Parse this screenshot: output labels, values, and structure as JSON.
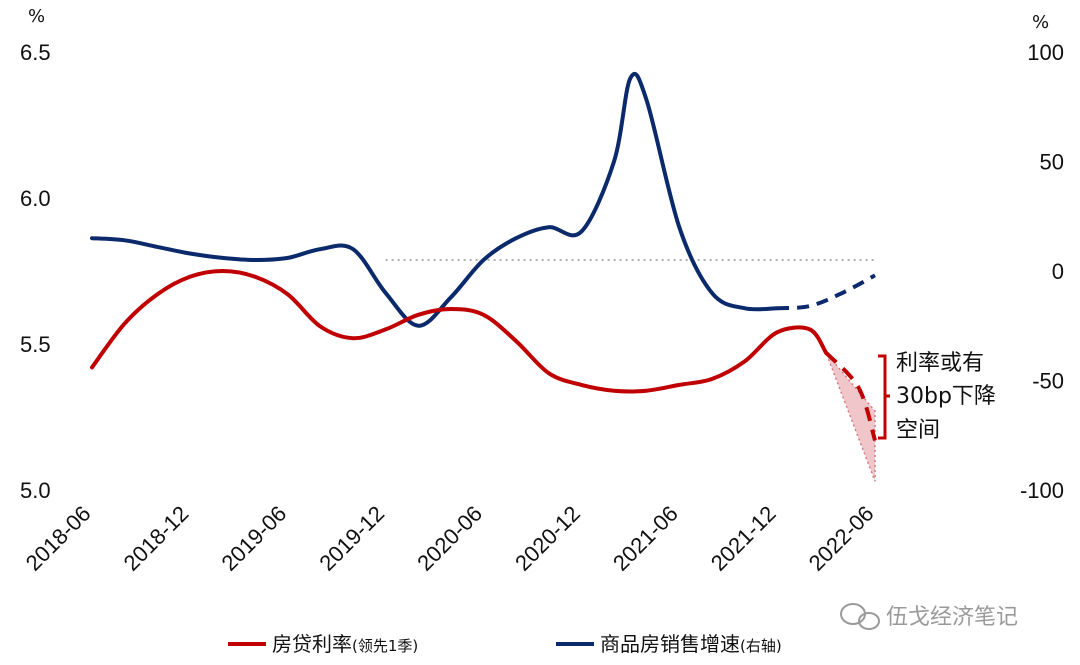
{
  "chart_data": {
    "type": "line",
    "left_axis": {
      "unit": "%",
      "ylim": [
        5.0,
        6.5
      ],
      "ticks": [
        "5.0",
        "5.5",
        "6.0",
        "6.5"
      ]
    },
    "right_axis": {
      "unit": "%",
      "ylim": [
        -100,
        100
      ],
      "ticks": [
        "-100",
        "-50",
        "0",
        "50",
        "100"
      ]
    },
    "x_ticks": [
      "2018-06",
      "2018-12",
      "2019-06",
      "2019-12",
      "2020-06",
      "2020-12",
      "2021-06",
      "2021-12",
      "2022-06"
    ],
    "series": [
      {
        "name": "房贷利率",
        "name_suffix": "(领先1季)",
        "axis": "left",
        "color": "#c00000",
        "points": [
          [
            "2018-06",
            5.42
          ],
          [
            "2018-08",
            5.57
          ],
          [
            "2018-10",
            5.67
          ],
          [
            "2018-12",
            5.73
          ],
          [
            "2019-02",
            5.75
          ],
          [
            "2019-04",
            5.73
          ],
          [
            "2019-06",
            5.67
          ],
          [
            "2019-08",
            5.56
          ],
          [
            "2019-10",
            5.52
          ],
          [
            "2019-12",
            5.55
          ],
          [
            "2020-02",
            5.6
          ],
          [
            "2020-04",
            5.62
          ],
          [
            "2020-06",
            5.6
          ],
          [
            "2020-08",
            5.51
          ],
          [
            "2020-10",
            5.4
          ],
          [
            "2020-12",
            5.36
          ],
          [
            "2021-02",
            5.34
          ],
          [
            "2021-04",
            5.34
          ],
          [
            "2021-06",
            5.36
          ],
          [
            "2021-08",
            5.38
          ],
          [
            "2021-10",
            5.44
          ],
          [
            "2021-12",
            5.54
          ],
          [
            "2022-02",
            5.55
          ],
          [
            "2022-03",
            5.47
          ]
        ],
        "forecast": [
          [
            "2022-03",
            5.47
          ],
          [
            "2022-05",
            5.35
          ],
          [
            "2022-06",
            5.17
          ]
        ],
        "forecast_band": {
          "upper": [
            [
              "2022-03",
              5.47
            ],
            [
              "2022-06",
              5.27
            ]
          ],
          "lower": [
            [
              "2022-03",
              5.47
            ],
            [
              "2022-06",
              5.03
            ]
          ]
        }
      },
      {
        "name": "商品房销售增速",
        "name_suffix": "(右轴)",
        "axis": "right",
        "color": "#0b2a6b",
        "points": [
          [
            "2018-06",
            15
          ],
          [
            "2018-08",
            14
          ],
          [
            "2018-10",
            11
          ],
          [
            "2018-12",
            8
          ],
          [
            "2019-02",
            6
          ],
          [
            "2019-04",
            5
          ],
          [
            "2019-06",
            6
          ],
          [
            "2019-08",
            10
          ],
          [
            "2019-10",
            10
          ],
          [
            "2019-12",
            -10
          ],
          [
            "2020-02",
            -25
          ],
          [
            "2020-04",
            -12
          ],
          [
            "2020-06",
            5
          ],
          [
            "2020-08",
            15
          ],
          [
            "2020-10",
            20
          ],
          [
            "2020-12",
            18
          ],
          [
            "2021-02",
            50
          ],
          [
            "2021-03",
            88
          ],
          [
            "2021-04",
            78
          ],
          [
            "2021-06",
            20
          ],
          [
            "2021-08",
            -10
          ],
          [
            "2021-10",
            -17
          ],
          [
            "2021-12",
            -17
          ]
        ],
        "forecast": [
          [
            "2021-12",
            -17
          ],
          [
            "2022-02",
            -16
          ],
          [
            "2022-04",
            -10
          ],
          [
            "2022-06",
            -2
          ]
        ]
      }
    ],
    "reference_line": {
      "axis": "right",
      "value": 5,
      "from": "2019-12",
      "to": "2022-06"
    },
    "annotation": {
      "lines": [
        "利率或有",
        "30bp下降",
        "空间"
      ]
    }
  },
  "watermark": "伍戈经济笔记"
}
